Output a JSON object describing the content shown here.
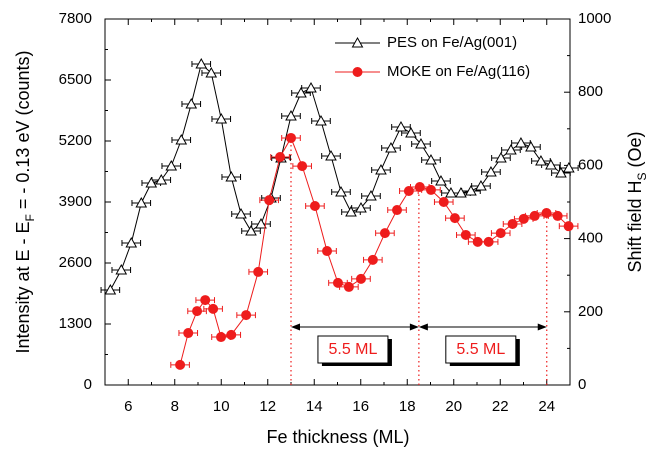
{
  "chart_data": {
    "type": "line",
    "xlabel": "Fe thickness (ML)",
    "ylabel": [
      "Intensity at E - E",
      "F",
      " = - 0.13 eV (counts)"
    ],
    "y2label": [
      "Shift field H",
      "S",
      " (Oe)"
    ],
    "xlim": [
      5,
      25
    ],
    "xticks": [
      6,
      8,
      10,
      12,
      14,
      16,
      18,
      20,
      22,
      24
    ],
    "ylim": [
      0,
      7800
    ],
    "yticks": [
      0,
      1300,
      2600,
      3900,
      5200,
      6500,
      7800
    ],
    "y2lim": [
      0,
      1000
    ],
    "y2ticks": [
      0,
      200,
      400,
      600,
      800,
      1000
    ],
    "legend": "upper right",
    "series": [
      {
        "name": "PES on Fe/Ag(001)",
        "color": "#000000",
        "marker": "triangle",
        "xerr": 0.4,
        "x": [
          5.23,
          5.7,
          6.13,
          6.56,
          6.99,
          7.42,
          7.85,
          8.28,
          8.71,
          9.14,
          9.57,
          10.0,
          10.43,
          10.85,
          11.28,
          11.71,
          12.14,
          12.57,
          13.0,
          13.43,
          13.86,
          14.29,
          14.72,
          15.15,
          15.58,
          16.01,
          16.44,
          16.87,
          17.3,
          17.73,
          18.16,
          18.59,
          19.02,
          19.45,
          19.88,
          20.31,
          20.74,
          21.17,
          21.6,
          22.03,
          22.46,
          22.89,
          23.32,
          23.75,
          24.18,
          24.61,
          24.95
        ],
        "values": [
          2024,
          2451,
          3026,
          3879,
          4305,
          4369,
          4667,
          5221,
          5988,
          6841,
          6649,
          5669,
          4433,
          3644,
          3282,
          3431,
          3985,
          4837,
          5732,
          6223,
          6329,
          5626,
          4880,
          4113,
          3687,
          3772,
          4028,
          4582,
          5050,
          5498,
          5370,
          5136,
          4795,
          4347,
          4092,
          4092,
          4134,
          4241,
          4539,
          4837,
          5008,
          5157,
          5072,
          4773,
          4688,
          4518,
          4624
        ]
      },
      {
        "name": "MOKE on Fe/Ag(116)",
        "color": "#ee1c1c",
        "marker": "circle",
        "axis": "y2",
        "xerr": 0.4,
        "x": [
          8.23,
          8.58,
          8.96,
          9.31,
          9.65,
          9.99,
          10.43,
          11.07,
          11.59,
          12.06,
          12.53,
          13.0,
          13.48,
          14.03,
          14.55,
          15.02,
          15.49,
          16.01,
          16.52,
          17.04,
          17.56,
          18.07,
          18.54,
          19.02,
          19.57,
          20.05,
          20.52,
          21.03,
          21.5,
          22.02,
          22.53,
          23.01,
          23.48,
          23.99,
          24.47,
          24.94
        ],
        "values": [
          55,
          142,
          202,
          232,
          208,
          131,
          137,
          191,
          309,
          505,
          623,
          675,
          598,
          489,
          366,
          279,
          268,
          290,
          342,
          415,
          478,
          530,
          541,
          533,
          500,
          456,
          410,
          391,
          391,
          415,
          440,
          454,
          462,
          470,
          462,
          434
        ]
      }
    ],
    "vlines": [
      13,
      18.5,
      24
    ],
    "annotations": [
      {
        "text": "5.5 ML",
        "x1": 13,
        "x2": 18.5
      },
      {
        "text": "5.5 ML",
        "x1": 18.5,
        "x2": 24
      }
    ]
  }
}
